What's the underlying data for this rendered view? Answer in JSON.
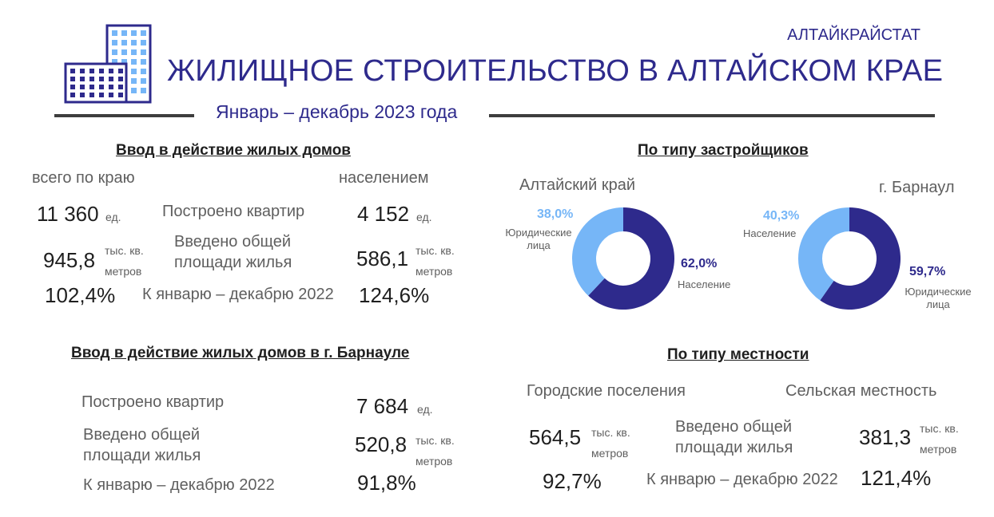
{
  "header": {
    "org": "АЛТАЙКРАЙСТАТ",
    "title": "ЖИЛИЩНОЕ СТРОИТЕЛЬСТВО В АЛТАЙСКОМ КРАЕ",
    "period": "Январь – декабрь 2023 года",
    "logo_icon": "buildings-icon"
  },
  "colors": {
    "accent": "#2e2a8c",
    "light": "#76b6f7",
    "text": "#1f1f1f",
    "muted": "#5f5f5f"
  },
  "housing": {
    "heading": "Ввод в действие жилых домов",
    "col_total": "всего по краю",
    "col_population": "населением",
    "rows": [
      {
        "label": "Построено квартир",
        "total": "11 360",
        "total_unit": "ед.",
        "population": "4 152",
        "population_unit": "ед."
      },
      {
        "label": "Введено общей площади жилья",
        "total": "945,8",
        "total_unit": "тыс. кв. метров",
        "population": "586,1",
        "population_unit": "тыс. кв. метров"
      },
      {
        "label": "К январю – декабрю 2022",
        "total": "102,4%",
        "population": "124,6%"
      }
    ]
  },
  "barnaul": {
    "heading": "Ввод в действие жилых домов в г. Барнауле",
    "rows": [
      {
        "label": "Построено квартир",
        "value": "7 684",
        "unit": "ед."
      },
      {
        "label": "Введено общей площади жилья",
        "value": "520,8",
        "unit": "тыс. кв. метров"
      },
      {
        "label": "К январю – декабрю 2022",
        "value": "91,8%"
      }
    ]
  },
  "developers": {
    "heading": "По типу застройщиков"
  },
  "chart_data": [
    {
      "type": "pie",
      "title": "Алтайский край",
      "slices": [
        {
          "label": "Население",
          "value": 62.0,
          "display": "62,0%",
          "color": "#2e2a8c"
        },
        {
          "label": "Юридические лица",
          "value": 38.0,
          "display": "38,0%",
          "color": "#76b6f7"
        }
      ]
    },
    {
      "type": "pie",
      "title": "г. Барнаул",
      "slices": [
        {
          "label": "Юридические лица",
          "value": 59.7,
          "display": "59,7%",
          "color": "#2e2a8c"
        },
        {
          "label": "Население",
          "value": 40.3,
          "display": "40,3%",
          "color": "#76b6f7"
        }
      ]
    }
  ],
  "locality": {
    "heading": "По типу местности",
    "col_urban": "Городские поселения",
    "col_rural": "Сельская местность",
    "rows": [
      {
        "label": "Введено общей площади жилья",
        "urban": "564,5",
        "urban_unit": "тыс. кв. метров",
        "rural": "381,3",
        "rural_unit": "тыс. кв. метров"
      },
      {
        "label": "К январю – декабрю 2022",
        "urban": "92,7%",
        "rural": "121,4%"
      }
    ]
  }
}
